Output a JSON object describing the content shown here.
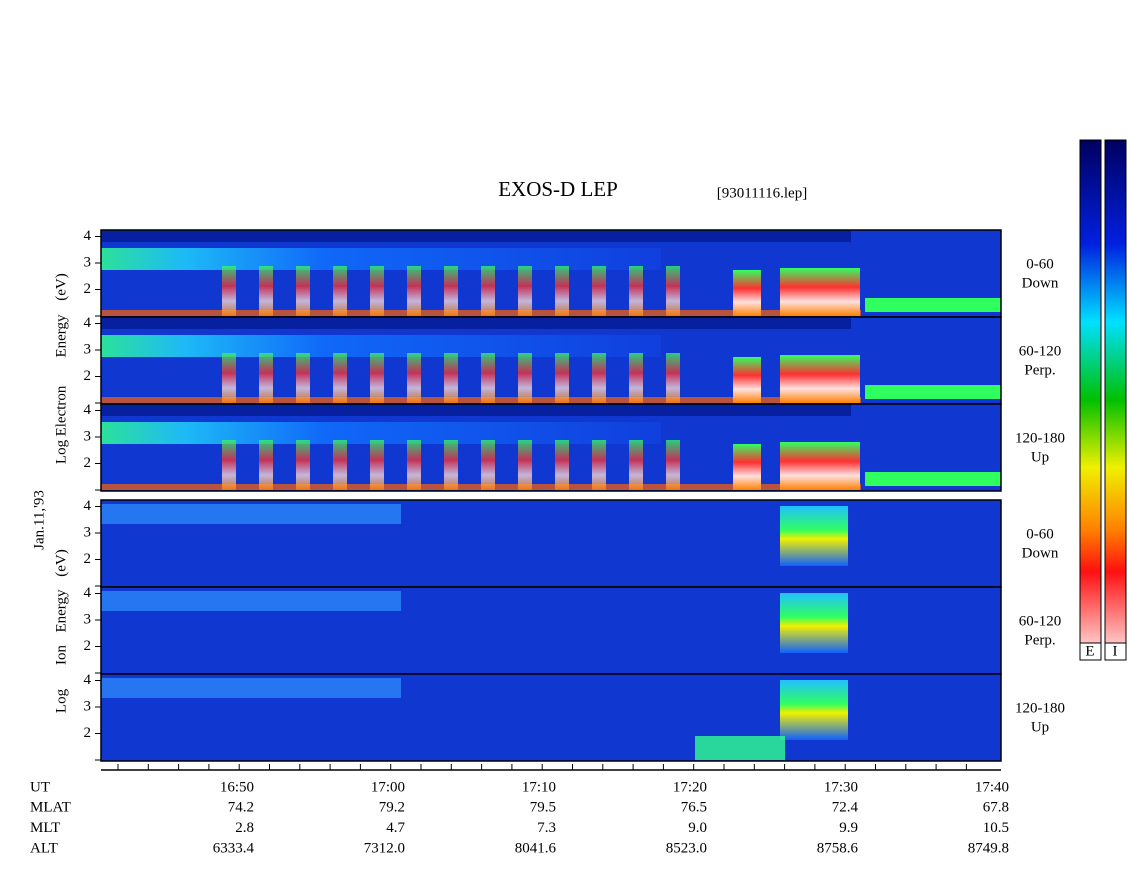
{
  "title": "EXOS-D LEP",
  "file": "[93011116.lep]",
  "date": "Jan.11,'93",
  "energy_ticks": [
    "2",
    "3",
    "4"
  ],
  "electron": {
    "ylabel": [
      "Log",
      "Electron",
      "Energy",
      "(eV)"
    ],
    "panels": [
      [
        "0-60",
        "Down"
      ],
      [
        "60-120",
        "Perp."
      ],
      [
        "120-180",
        "Up"
      ]
    ]
  },
  "ion": {
    "ylabel": [
      "Log",
      "Ion",
      "Energy",
      "(eV)"
    ],
    "panels": [
      [
        "0-60",
        "Down"
      ],
      [
        "60-120",
        "Perp."
      ],
      [
        "120-180",
        "Up"
      ]
    ]
  },
  "axis_rows": [
    {
      "name": "UT",
      "values": [
        "16:50",
        "17:00",
        "17:10",
        "17:20",
        "17:30",
        "17:40"
      ]
    },
    {
      "name": "MLAT",
      "values": [
        "74.2",
        "79.2",
        "79.5",
        "76.5",
        "72.4",
        "67.8"
      ]
    },
    {
      "name": "MLT",
      "values": [
        "2.8",
        "4.7",
        "7.3",
        "9.0",
        "9.9",
        "10.5"
      ]
    },
    {
      "name": "ALT",
      "values": [
        "6333.4",
        "7312.0",
        "8041.6",
        "8523.0",
        "8758.6",
        "8749.8"
      ]
    }
  ],
  "colorbar_labels": [
    "E",
    "I"
  ]
}
